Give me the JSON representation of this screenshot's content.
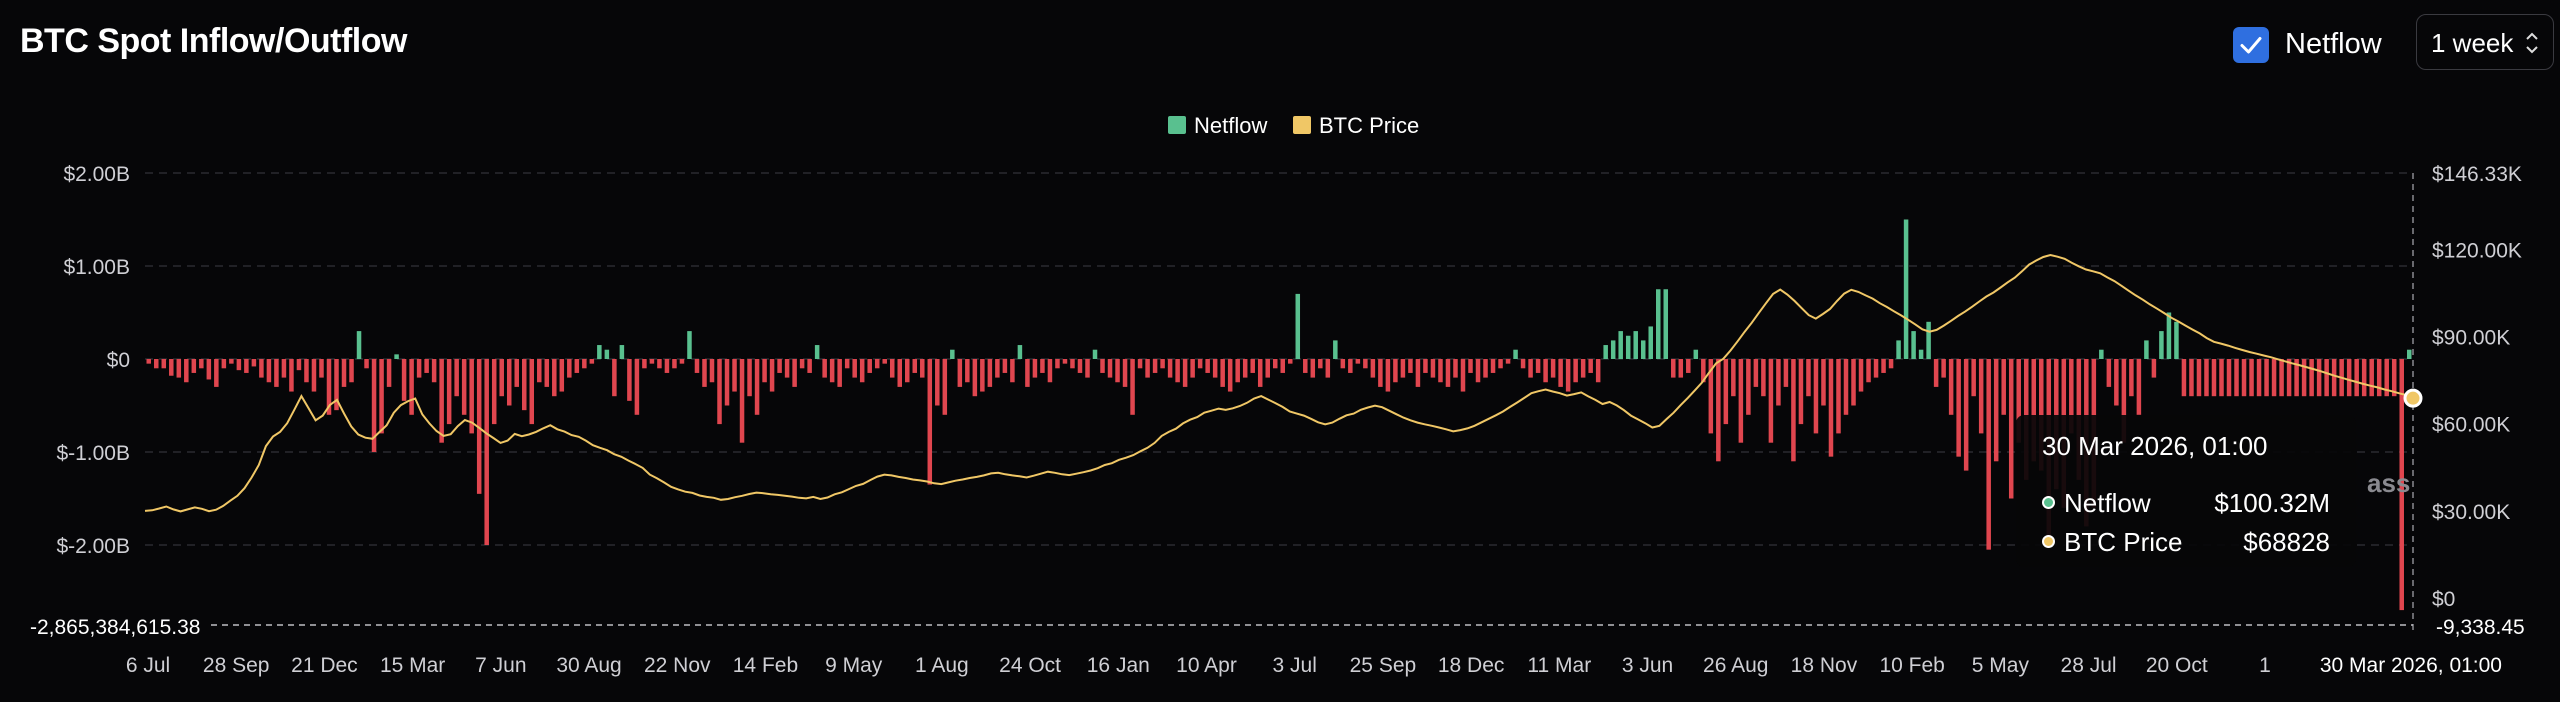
{
  "title": "BTC Spot Inflow/Outflow",
  "controls": {
    "toggle_label": "Netflow",
    "toggle_checked": true,
    "period_select": "1 week"
  },
  "watermark": "ass",
  "colors": {
    "positive": "#59c08f",
    "negative": "#e0464f",
    "price": "#f0c766",
    "accent": "#2f6fe0"
  },
  "tooltip": {
    "date": "30 Mar 2026, 01:00",
    "rows": [
      {
        "label": "Netflow",
        "value": "$100.32M",
        "color": "#59c08f"
      },
      {
        "label": "BTC Price",
        "value": "$68828",
        "color": "#f0c766"
      }
    ]
  },
  "chart_data": {
    "type": "bar+line",
    "legend": [
      "Netflow",
      "BTC Price"
    ],
    "legend_position": "top-center",
    "grid": true,
    "x_ticks": [
      "6 Jul",
      "28 Sep",
      "21 Dec",
      "15 Mar",
      "7 Jun",
      "30 Aug",
      "22 Nov",
      "14 Feb",
      "9 May",
      "1 Aug",
      "24 Oct",
      "16 Jan",
      "10 Apr",
      "3 Jul",
      "25 Sep",
      "18 Dec",
      "11 Mar",
      "3 Jun",
      "26 Aug",
      "18 Nov",
      "10 Feb",
      "5 May",
      "28 Jul",
      "20 Oct",
      "1"
    ],
    "x_crosshair_label": "30 Mar 2026, 01:00",
    "y_left": {
      "ticks": [
        "$2.00B",
        "$1.00B",
        "$0",
        "$-1.00B",
        "$-2.00B"
      ],
      "tick_values": [
        2,
        1,
        0,
        -1,
        -2
      ],
      "unit": "B USD",
      "crosshair_label": "-2,865,384,615.38"
    },
    "y_right": {
      "ticks": [
        "$146.33K",
        "$120.00K",
        "$90.00K",
        "$60.00K",
        "$30.00K",
        "$0"
      ],
      "tick_values": [
        146.33,
        120,
        90,
        60,
        30,
        0
      ],
      "unit": "K USD",
      "crosshair_label": "-9,338.45"
    },
    "series": [
      {
        "name": "Netflow",
        "axis": "left",
        "unit": "B USD",
        "values": [
          -0.05,
          -0.1,
          -0.1,
          -0.18,
          -0.2,
          -0.25,
          -0.15,
          -0.1,
          -0.22,
          -0.3,
          -0.1,
          -0.05,
          -0.12,
          -0.15,
          -0.08,
          -0.2,
          -0.25,
          -0.3,
          -0.2,
          -0.35,
          -0.12,
          -0.25,
          -0.35,
          -0.2,
          -0.6,
          -0.55,
          -0.3,
          -0.25,
          0.3,
          -0.1,
          -1.0,
          -0.8,
          -0.3,
          0.05,
          -0.45,
          -0.6,
          -0.2,
          -0.15,
          -0.25,
          -0.9,
          -0.7,
          -0.4,
          -0.6,
          -0.8,
          -1.45,
          -2.0,
          -0.7,
          -0.4,
          -0.5,
          -0.3,
          -0.55,
          -0.7,
          -0.25,
          -0.3,
          -0.4,
          -0.35,
          -0.2,
          -0.15,
          -0.1,
          -0.05,
          0.15,
          0.1,
          -0.4,
          0.15,
          -0.45,
          -0.6,
          -0.1,
          -0.05,
          -0.1,
          -0.15,
          -0.1,
          -0.05,
          0.3,
          -0.15,
          -0.3,
          -0.25,
          -0.7,
          -0.5,
          -0.35,
          -0.9,
          -0.4,
          -0.6,
          -0.25,
          -0.35,
          -0.15,
          -0.2,
          -0.3,
          -0.1,
          -0.15,
          0.15,
          -0.2,
          -0.25,
          -0.3,
          -0.1,
          -0.2,
          -0.25,
          -0.15,
          -0.1,
          -0.05,
          -0.2,
          -0.3,
          -0.25,
          -0.15,
          -0.2,
          -1.35,
          -0.5,
          -0.6,
          0.1,
          -0.3,
          -0.25,
          -0.4,
          -0.35,
          -0.3,
          -0.2,
          -0.15,
          -0.25,
          0.15,
          -0.3,
          -0.2,
          -0.15,
          -0.25,
          -0.1,
          -0.05,
          -0.1,
          -0.15,
          -0.2,
          0.1,
          -0.15,
          -0.2,
          -0.25,
          -0.3,
          -0.6,
          -0.1,
          -0.2,
          -0.15,
          -0.1,
          -0.2,
          -0.25,
          -0.3,
          -0.2,
          -0.1,
          -0.15,
          -0.2,
          -0.3,
          -0.35,
          -0.25,
          -0.2,
          -0.15,
          -0.3,
          -0.2,
          -0.1,
          -0.15,
          -0.05,
          0.7,
          -0.15,
          -0.2,
          -0.1,
          -0.2,
          0.2,
          -0.1,
          -0.15,
          -0.05,
          -0.1,
          -0.2,
          -0.3,
          -0.35,
          -0.25,
          -0.2,
          -0.15,
          -0.3,
          -0.15,
          -0.2,
          -0.25,
          -0.3,
          -0.2,
          -0.35,
          -0.15,
          -0.25,
          -0.2,
          -0.15,
          -0.1,
          -0.05,
          0.1,
          -0.1,
          -0.2,
          -0.15,
          -0.25,
          -0.2,
          -0.3,
          -0.35,
          -0.25,
          -0.2,
          -0.15,
          -0.25,
          0.15,
          0.2,
          0.3,
          0.25,
          0.3,
          0.2,
          0.35,
          0.75,
          0.75,
          -0.2,
          -0.2,
          -0.15,
          0.1,
          -0.25,
          -0.8,
          -1.1,
          -0.7,
          -0.4,
          -0.9,
          -0.6,
          -0.3,
          -0.4,
          -0.9,
          -0.5,
          -0.3,
          -1.1,
          -0.7,
          -0.4,
          -0.8,
          -0.5,
          -1.05,
          -0.8,
          -0.6,
          -0.5,
          -0.35,
          -0.25,
          -0.2,
          -0.15,
          -0.1,
          0.2,
          1.5,
          0.3,
          0.1,
          0.4,
          -0.3,
          -0.2,
          -0.6,
          -1.05,
          -1.2,
          -0.4,
          -0.8,
          -2.05,
          -1.1,
          -0.6,
          -1.5,
          -0.9,
          -1.3,
          -1.1,
          -1.2,
          -2.0,
          -1.4,
          -1.6,
          -0.8,
          -1.3,
          -1.8,
          -1.6,
          0.1,
          -0.3,
          -0.5,
          -0.9,
          -0.4,
          -0.6,
          0.2,
          -0.2,
          0.3,
          0.5,
          0.4,
          -0.4,
          -0.4,
          -0.4,
          -0.4,
          -0.4,
          -0.4,
          -0.4,
          -0.4,
          -0.4,
          -0.4,
          -0.4,
          -0.4,
          -0.4,
          -0.4,
          -0.4,
          -0.4,
          -0.4,
          -0.4,
          -0.4,
          -0.4,
          -0.4,
          -0.4,
          -0.4,
          -0.4,
          -0.4,
          -0.4,
          -0.4,
          -0.4,
          -0.4,
          -2.7,
          0.1
        ]
      },
      {
        "name": "BTC Price",
        "axis": "right",
        "unit": "K USD",
        "values": [
          30,
          30.2,
          30.8,
          31.5,
          30.5,
          29.8,
          30.5,
          31.2,
          30.7,
          29.9,
          30.4,
          31.7,
          33.5,
          35.2,
          37.8,
          41.5,
          45.8,
          52.3,
          55.6,
          57.2,
          60.2,
          64.8,
          69.5,
          65.4,
          61.2,
          62.8,
          66.5,
          68.2,
          63.5,
          59.1,
          56.3,
          55.2,
          54.8,
          57.2,
          59.5,
          63.8,
          66.4,
          67.8,
          68.7,
          63.2,
          60.1,
          57.5,
          55.8,
          56.4,
          59.2,
          61.3,
          60.4,
          58.6,
          56.7,
          55.1,
          53.4,
          54.2,
          56.5,
          55.7,
          56.3,
          57.2,
          58.4,
          59.5,
          58.1,
          57.3,
          56.1,
          55.5,
          54.2,
          52.6,
          51.7,
          50.9,
          49.5,
          48.6,
          47.3,
          46.1,
          44.8,
          42.5,
          41.2,
          39.8,
          38.3,
          37.4,
          36.6,
          36.2,
          35.3,
          34.8,
          34.5,
          33.8,
          34.1,
          34.7,
          35.2,
          35.8,
          36.3,
          36.1,
          35.7,
          35.5,
          35.2,
          34.9,
          34.5,
          34.3,
          34.8,
          34.1,
          34.6,
          35.7,
          36.4,
          37.5,
          38.6,
          39.3,
          40.6,
          41.8,
          42.5,
          42.2,
          41.7,
          41.3,
          40.8,
          40.5,
          40.1,
          39.5,
          39.2,
          39.8,
          40.4,
          40.8,
          41.3,
          41.7,
          42.2,
          42.9,
          43.1,
          42.6,
          42.2,
          41.9,
          41.5,
          42.1,
          42.8,
          43.5,
          43.1,
          42.6,
          42.3,
          42.8,
          43.3,
          43.9,
          44.7,
          45.8,
          46.4,
          47.6,
          48.3,
          49.2,
          50.5,
          51.7,
          53.4,
          55.8,
          57.2,
          58.3,
          60.1,
          61.4,
          62.3,
          63.8,
          64.5,
          65.2,
          64.8,
          65.3,
          66.1,
          67.2,
          68.7,
          69.5,
          68.3,
          67.1,
          65.8,
          64.2,
          63.5,
          62.8,
          61.7,
          60.5,
          59.8,
          60.4,
          61.7,
          62.9,
          63.5,
          64.8,
          65.6,
          66.2,
          65.7,
          64.5,
          63.3,
          62.1,
          61.2,
          60.4,
          59.8,
          59.3,
          58.7,
          58.1,
          57.4,
          57.8,
          58.4,
          59.3,
          60.5,
          61.7,
          62.9,
          64.2,
          65.8,
          67.3,
          68.9,
          70.5,
          71.2,
          71.8,
          71.1,
          70.5,
          69.7,
          70.2,
          70.8,
          69.4,
          68.2,
          66.8,
          67.5,
          66.3,
          64.7,
          62.8,
          61.5,
          60.2,
          58.7,
          59.3,
          61.6,
          63.8,
          66.4,
          68.9,
          71.5,
          74.2,
          77.6,
          80.8,
          82.4,
          85.2,
          88.4,
          91.7,
          94.8,
          98.2,
          101.5,
          104.7,
          106.2,
          104.5,
          102.3,
          99.8,
          97.4,
          96.2,
          97.8,
          99.5,
          102.3,
          104.8,
          106.1,
          105.4,
          104.2,
          103.1,
          101.5,
          100.2,
          98.7,
          97.3,
          95.8,
          94.2,
          92.5,
          91.7,
          92.3,
          93.8,
          95.4,
          97.1,
          98.6,
          100.3,
          102.1,
          103.8,
          105.2,
          106.9,
          108.7,
          110.3,
          112.5,
          114.8,
          116.2,
          117.4,
          118.1,
          117.5,
          116.8,
          115.4,
          114.2,
          113.1,
          112.5,
          111.8,
          110.4,
          109.1,
          107.5,
          105.8,
          104.2,
          102.7,
          101.1,
          99.6,
          98.1,
          96.5,
          95.2,
          93.8,
          92.4,
          91.1,
          89.5,
          88.2,
          87.6,
          86.9,
          86.1,
          85.4,
          84.7,
          84.1,
          83.5,
          82.9,
          82.2,
          81.5,
          80.8,
          80.2,
          79.5,
          78.8,
          78.1,
          77.3,
          76.5,
          75.8,
          75.1,
          74.4,
          73.7,
          73.1,
          72.5,
          71.8,
          71.2,
          70.5,
          69.9,
          68.8
        ]
      }
    ]
  }
}
